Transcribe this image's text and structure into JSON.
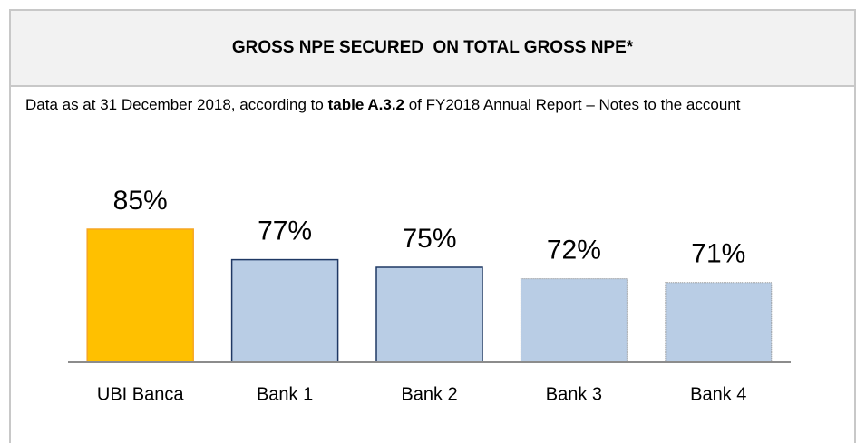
{
  "header": {
    "title": "GROSS NPE SECURED  ON TOTAL GROSS NPE*"
  },
  "note": {
    "text_before": "Data as at 31 December 2018, according to ",
    "bold": "table A.3.2",
    "text_after": " of FY2018 Annual Report – Notes to the account"
  },
  "chart_data": {
    "type": "bar",
    "categories": [
      "UBI Banca",
      "Bank 1",
      "Bank 2",
      "Bank 3",
      "Bank 4"
    ],
    "values": [
      85,
      77,
      75,
      72,
      71
    ],
    "value_labels": [
      "85%",
      "77%",
      "75%",
      "72%",
      "71%"
    ],
    "colors": [
      "#ffc000",
      "#b9cde5",
      "#b9cde5",
      "#b9cde5",
      "#b9cde5"
    ],
    "edge_colors": [
      "#f5a623",
      "#1f3864",
      "#1f3864",
      "#8a8a8a",
      "#8a8a8a"
    ],
    "edge_styles": [
      "solid",
      "solid",
      "solid",
      "dotted",
      "dotted"
    ],
    "ylim": [
      50,
      100
    ]
  }
}
